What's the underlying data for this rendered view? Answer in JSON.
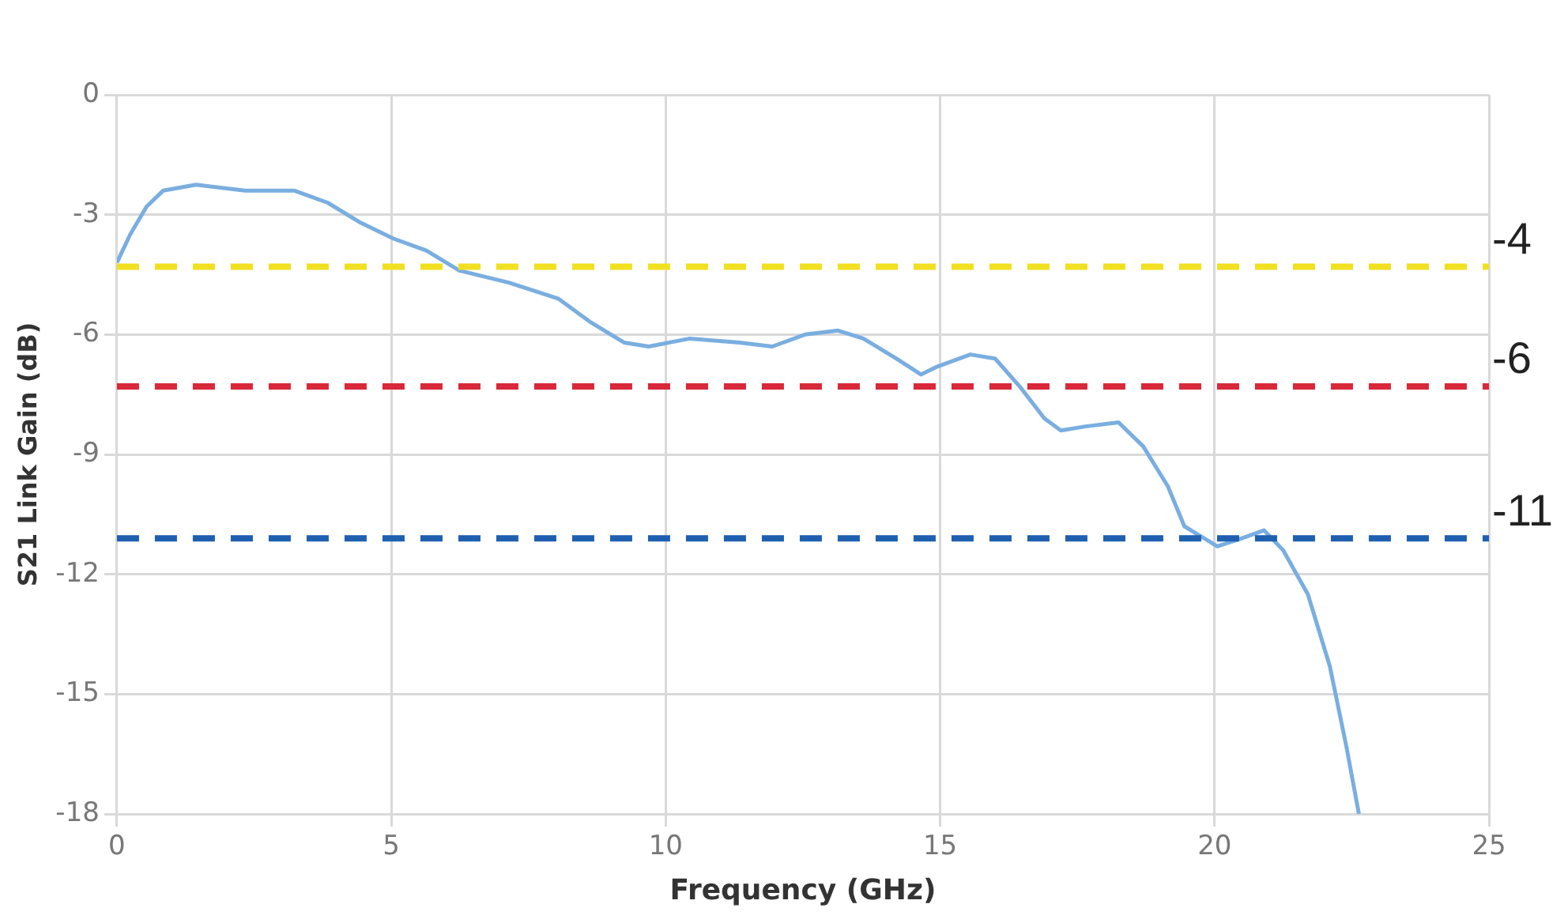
{
  "chart_data": {
    "type": "line",
    "xlabel": "Frequency (GHz)",
    "ylabel": "S21 Link Gain (dB)",
    "xlim": [
      0,
      25
    ],
    "xticks": [
      0,
      5,
      10,
      15,
      20,
      25
    ],
    "ylim": [
      -18,
      0
    ],
    "yticks": [
      -18,
      -15,
      -12,
      -9,
      -6,
      -3,
      0
    ],
    "grid": true,
    "legend": false,
    "marker": "none",
    "series": [
      {
        "color": "#7aaee0",
        "line_style": "solid",
        "x": [
          0,
          0.24,
          0.54,
          0.84,
          1.44,
          2.34,
          3.24,
          3.84,
          4.44,
          5.04,
          5.64,
          6.24,
          7.14,
          8.04,
          8.64,
          9.24,
          9.69,
          10.44,
          11.34,
          11.94,
          12.54,
          13.14,
          13.6,
          14.2,
          14.65,
          14.95,
          15.55,
          16.0,
          16.45,
          16.9,
          17.2,
          17.65,
          18.25,
          18.7,
          19.15,
          19.45,
          20.05,
          20.5,
          20.9,
          21.25,
          21.7,
          22.1,
          22.4,
          22.63
        ],
        "values": [
          -4.2,
          -3.5,
          -2.8,
          -2.4,
          -2.25,
          -2.4,
          -2.4,
          -2.7,
          -3.2,
          -3.6,
          -3.9,
          -4.4,
          -4.7,
          -5.1,
          -5.7,
          -6.2,
          -6.3,
          -6.1,
          -6.2,
          -6.3,
          -6.0,
          -5.9,
          -6.1,
          -6.6,
          -7.0,
          -6.8,
          -6.5,
          -6.6,
          -7.3,
          -8.1,
          -8.4,
          -8.3,
          -8.2,
          -8.8,
          -9.8,
          -10.8,
          -11.3,
          -11.1,
          -10.9,
          -11.4,
          -12.5,
          -14.3,
          -16.3,
          -18
        ]
      }
    ],
    "ref_lines": [
      {
        "axis": "y",
        "value": -4.3,
        "color": "#f0e020",
        "line_style": "dashed"
      },
      {
        "axis": "y",
        "value": -7.3,
        "color": "#d8283a",
        "line_style": "dashed"
      },
      {
        "axis": "y",
        "value": -11.1,
        "color": "#1f5fb0",
        "line_style": "dashed"
      }
    ],
    "annotations": [
      "-4",
      "-6",
      "-11"
    ]
  }
}
